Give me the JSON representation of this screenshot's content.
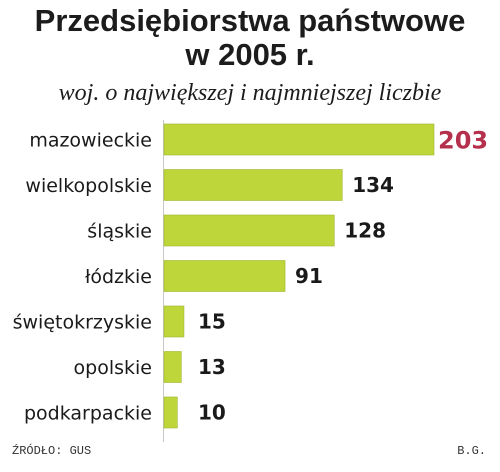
{
  "header": {
    "title_line1": "Przedsiębiorstwa państwowe",
    "title_line2": "w 2005 r.",
    "subtitle": "woj. o największej i najmniejszej liczbie"
  },
  "footer": {
    "source": "ŹRÓDŁO: GUS",
    "author": "B.G."
  },
  "colors": {
    "bar": "#bfd63a",
    "bar_edge": "#9fb52a",
    "max_label": "#b5304c",
    "axis": "#c8c8c8"
  },
  "chart_data": {
    "type": "bar",
    "orientation": "horizontal",
    "categories": [
      "mazowieckie",
      "wielkopolskie",
      "śląskie",
      "łódzkie",
      "świętokrzyskie",
      "opolskie",
      "podkarpackie"
    ],
    "values": [
      203,
      134,
      128,
      91,
      15,
      13,
      10
    ],
    "xlim": [
      0,
      203
    ],
    "grid": false,
    "legend": "none"
  }
}
